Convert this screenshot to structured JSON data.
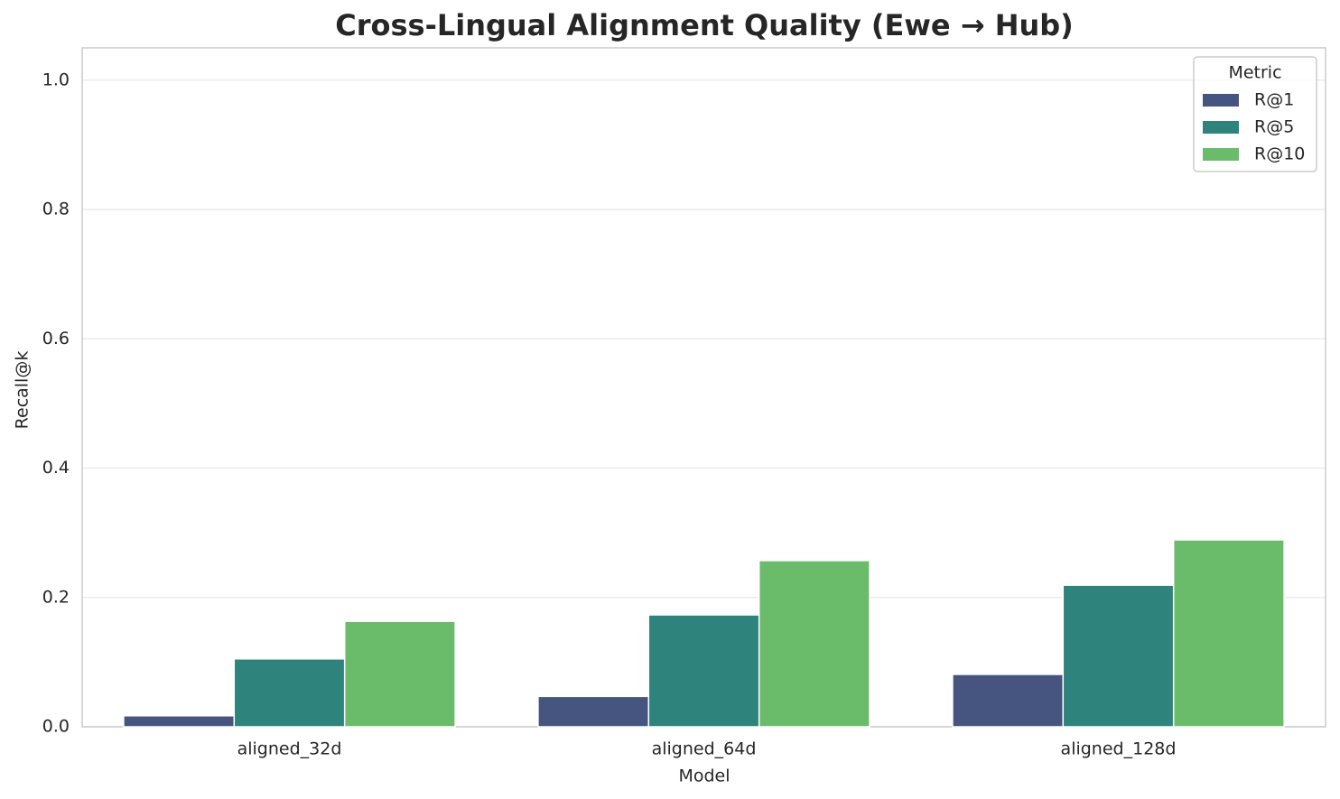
{
  "chart_data": {
    "type": "bar",
    "title": "Cross-Lingual Alignment Quality (Ewe → Hub)",
    "x_label": "Model",
    "y_label": "Recall@k",
    "categories": [
      "aligned_32d",
      "aligned_64d",
      "aligned_128d"
    ],
    "series": [
      {
        "name": "R@1",
        "color": "#46557f",
        "values": [
          0.017,
          0.047,
          0.081
        ]
      },
      {
        "name": "R@5",
        "color": "#2e837c",
        "values": [
          0.105,
          0.173,
          0.219
        ]
      },
      {
        "name": "R@10",
        "color": "#6abc6a",
        "values": [
          0.163,
          0.257,
          0.289
        ]
      }
    ],
    "legend_title": "Metric",
    "legend_position": "upper right",
    "ylim": [
      0,
      1.05
    ],
    "yticks": [
      {
        "value": 0,
        "label": "0.0"
      },
      0.2,
      0.4,
      0.6,
      0.8,
      {
        "value": 1,
        "label": "1.0"
      }
    ],
    "grid": true
  }
}
